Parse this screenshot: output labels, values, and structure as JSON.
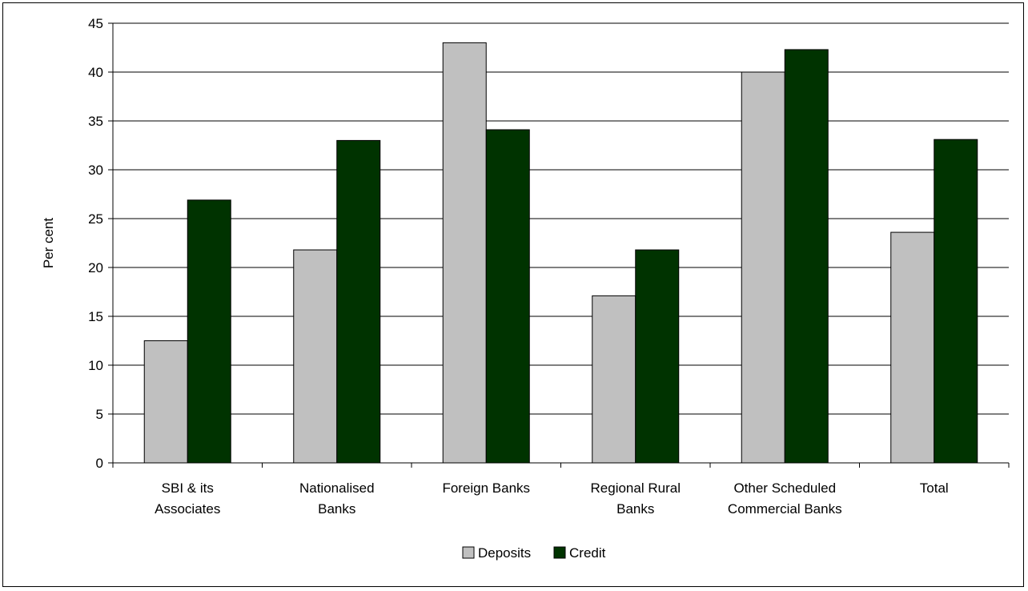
{
  "chart_data": {
    "type": "bar",
    "title": "",
    "xlabel": "",
    "ylabel": "Per cent",
    "ylim": [
      0,
      45
    ],
    "yticks": [
      0,
      5,
      10,
      15,
      20,
      25,
      30,
      35,
      40,
      45
    ],
    "grid": true,
    "legend_position": "bottom",
    "categories": [
      [
        "SBI & its",
        "Associates"
      ],
      [
        "Nationalised",
        "Banks"
      ],
      [
        "Foreign Banks"
      ],
      [
        "Regional Rural",
        "Banks"
      ],
      [
        "Other Scheduled",
        "Commercial Banks"
      ],
      [
        "Total"
      ]
    ],
    "series": [
      {
        "name": "Deposits",
        "color": "#c0c0c0",
        "values": [
          12.5,
          21.8,
          43.0,
          17.1,
          40.0,
          23.6
        ]
      },
      {
        "name": "Credit",
        "color": "#003300",
        "values": [
          26.9,
          33.0,
          34.1,
          21.8,
          42.3,
          33.1
        ]
      }
    ]
  }
}
